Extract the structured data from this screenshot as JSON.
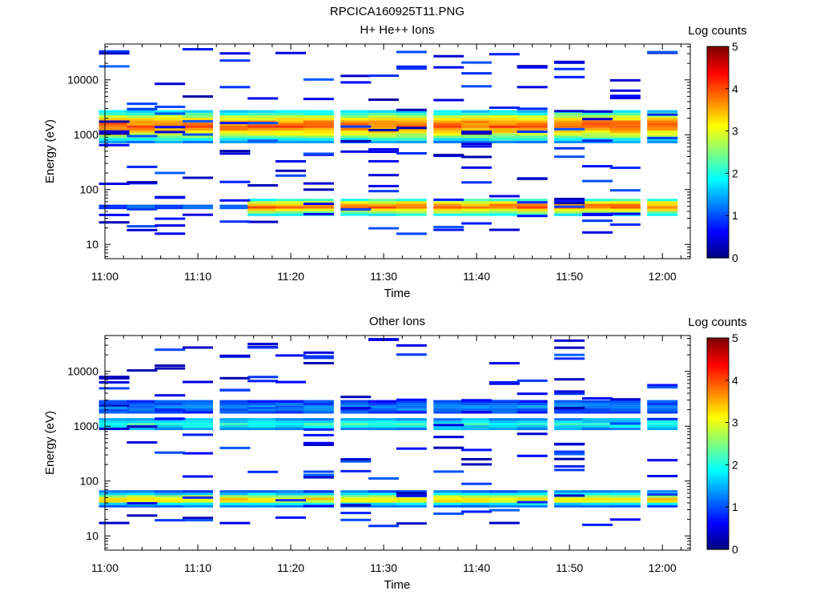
{
  "figure": {
    "title": "RPCICA160925T11.PNG"
  },
  "colors": {
    "colormap": [
      "#00007f",
      "#0000ff",
      "#007fff",
      "#00ffff",
      "#7fff7f",
      "#ffff00",
      "#ff7f00",
      "#ff0000",
      "#7f0000"
    ]
  },
  "chart_data": [
    {
      "type": "heatmap",
      "title": "H+ He++ Ions",
      "xlabel": "Time",
      "ylabel": "Energy (eV)",
      "x_ticks": [
        "11:00",
        "11:10",
        "11:20",
        "11:30",
        "11:40",
        "11:50",
        "12:00"
      ],
      "x_range": [
        "11:00",
        "12:03"
      ],
      "y_scale": "log",
      "y_range": [
        5.5,
        45000
      ],
      "y_ticks": [
        10,
        100,
        1000,
        10000
      ],
      "y_tick_labels": [
        "10",
        "100",
        "1000",
        "10000"
      ],
      "colorbar": {
        "label": "Log counts",
        "range": [
          0,
          5
        ],
        "ticks": [
          "0",
          "1",
          "2",
          "3",
          "4",
          "5"
        ]
      },
      "time_bins": [
        "11:01",
        "11:04",
        "11:07",
        "11:10",
        "11:14",
        "11:17",
        "11:20",
        "11:23",
        "11:27",
        "11:30",
        "11:33",
        "11:37",
        "11:40",
        "11:43",
        "11:46",
        "11:50",
        "11:53",
        "11:56",
        "12:00"
      ],
      "bands": [
        {
          "energy_range": [
            700,
            2800
          ],
          "log_counts_profile": [
            1.0,
            2.3,
            3.2,
            3.9,
            3.6,
            2.6,
            1.4
          ]
        },
        {
          "energy_range": [
            44,
            53
          ],
          "from_bin": 0,
          "to_bin": 5,
          "log_counts": 1.0
        },
        {
          "energy_range": [
            33,
            68
          ],
          "from_bin": 5,
          "to_bin": 19,
          "log_counts_profile": [
            1.6,
            2.7,
            3.9,
            3.3,
            1.6
          ]
        }
      ]
    },
    {
      "type": "heatmap",
      "title": "Other Ions",
      "xlabel": "Time",
      "ylabel": "Energy (eV)",
      "x_ticks": [
        "11:00",
        "11:10",
        "11:20",
        "11:30",
        "11:40",
        "11:50",
        "12:00"
      ],
      "x_range": [
        "11:00",
        "12:03"
      ],
      "y_scale": "log",
      "y_range": [
        5.5,
        45000
      ],
      "y_ticks": [
        10,
        100,
        1000,
        10000
      ],
      "y_tick_labels": [
        "10",
        "100",
        "1000",
        "10000"
      ],
      "colorbar": {
        "label": "Log counts",
        "range": [
          0,
          5
        ],
        "ticks": [
          "0",
          "1",
          "2",
          "3",
          "4",
          "5"
        ]
      },
      "time_bins": [
        "11:01",
        "11:04",
        "11:07",
        "11:10",
        "11:14",
        "11:17",
        "11:20",
        "11:23",
        "11:27",
        "11:30",
        "11:33",
        "11:37",
        "11:40",
        "11:43",
        "11:46",
        "11:50",
        "11:53",
        "11:56",
        "12:00"
      ],
      "bands": [
        {
          "energy_range": [
            850,
            1400
          ],
          "log_counts_profile": [
            1.2,
            2.1,
            1.2
          ]
        },
        {
          "energy_range": [
            1700,
            3000
          ],
          "log_counts_profile": [
            0.8,
            1.3,
            0.8
          ]
        },
        {
          "energy_range": [
            33,
            68
          ],
          "from_bin": 0,
          "to_bin": 19,
          "log_counts_profile": [
            0.8,
            1.7,
            3.5,
            3.0,
            1.6,
            0.8
          ]
        }
      ]
    }
  ]
}
